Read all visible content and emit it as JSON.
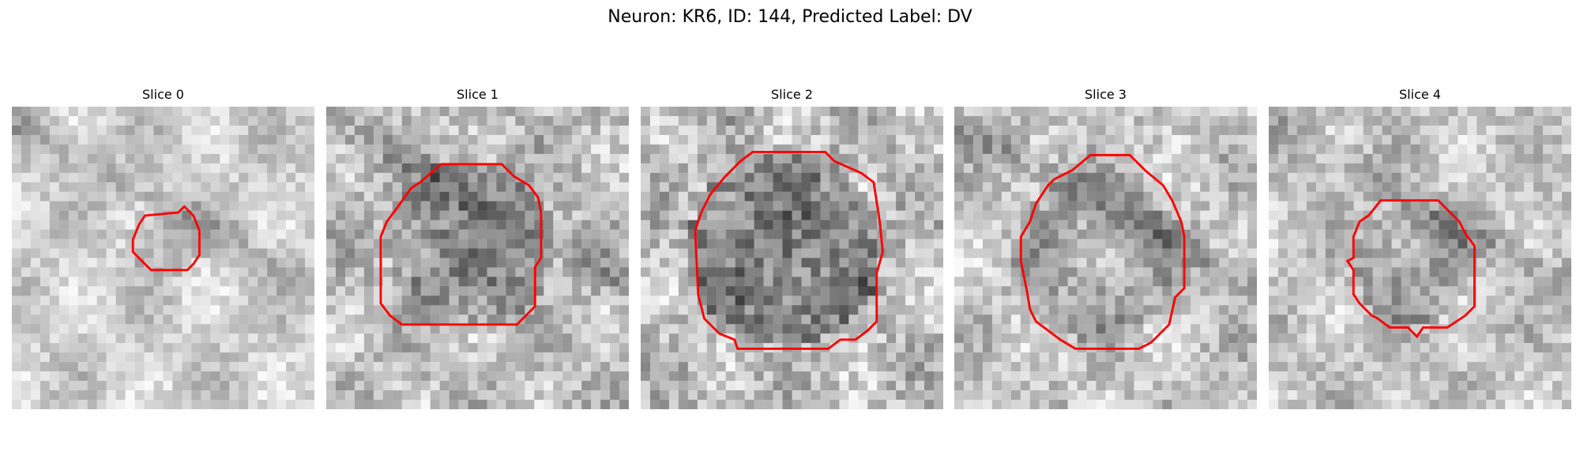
{
  "figure": {
    "title": "Neuron: KR6, ID: 144, Predicted Label: DV"
  },
  "panels": [
    {
      "title": "Slice 0",
      "seed": 11,
      "background_levels": [
        150,
        235
      ],
      "dark_band": {
        "direction": "diag-down",
        "strength": 0.45
      },
      "contour": [
        [
          44,
          36
        ],
        [
          55,
          35
        ],
        [
          57,
          33
        ],
        [
          60,
          36
        ],
        [
          62,
          41
        ],
        [
          62,
          49
        ],
        [
          60,
          52
        ],
        [
          58,
          54
        ],
        [
          46,
          54
        ],
        [
          43,
          51
        ],
        [
          40,
          48
        ],
        [
          40,
          44
        ],
        [
          42,
          39
        ]
      ],
      "cell_dark": {
        "cx": 50,
        "cy": 45,
        "r": 12,
        "strength": 0.35
      }
    },
    {
      "title": "Slice 1",
      "seed": 23,
      "background_levels": [
        110,
        230
      ],
      "dark_band": {
        "direction": "diag-down-right",
        "strength": 0.3
      },
      "contour": [
        [
          38,
          19
        ],
        [
          58,
          19
        ],
        [
          62,
          23
        ],
        [
          67,
          26
        ],
        [
          70,
          30
        ],
        [
          71,
          35
        ],
        [
          71,
          50
        ],
        [
          69,
          53
        ],
        [
          69,
          66
        ],
        [
          63,
          72
        ],
        [
          25,
          72
        ],
        [
          21,
          69
        ],
        [
          18,
          65
        ],
        [
          18,
          43
        ],
        [
          20,
          38
        ],
        [
          23,
          34
        ],
        [
          28,
          27
        ],
        [
          31,
          25
        ]
      ],
      "cell_dark": {
        "cx": 48,
        "cy": 45,
        "r": 28,
        "strength": 0.5
      }
    },
    {
      "title": "Slice 2",
      "seed": 37,
      "background_levels": [
        100,
        235
      ],
      "dark_band": null,
      "contour": [
        [
          37,
          15
        ],
        [
          61,
          15
        ],
        [
          64,
          18
        ],
        [
          73,
          22
        ],
        [
          77,
          25
        ],
        [
          79,
          38
        ],
        [
          80,
          48
        ],
        [
          78,
          55
        ],
        [
          78,
          71
        ],
        [
          75,
          74
        ],
        [
          71,
          77
        ],
        [
          66,
          77
        ],
        [
          62,
          80
        ],
        [
          32,
          80
        ],
        [
          31,
          77
        ],
        [
          26,
          75
        ],
        [
          24,
          73
        ],
        [
          21,
          70
        ],
        [
          19,
          62
        ],
        [
          18,
          41
        ],
        [
          20,
          35
        ],
        [
          23,
          29
        ],
        [
          28,
          23
        ],
        [
          33,
          18
        ]
      ],
      "cell_dark": {
        "cx": 48,
        "cy": 47,
        "r": 32,
        "strength": 0.55
      }
    },
    {
      "title": "Slice 3",
      "seed": 51,
      "background_levels": [
        120,
        235
      ],
      "dark_band": {
        "direction": "diag-down-right",
        "strength": 0.4
      },
      "contour": [
        [
          45,
          16
        ],
        [
          58,
          16
        ],
        [
          63,
          21
        ],
        [
          69,
          26
        ],
        [
          72,
          31
        ],
        [
          75,
          38
        ],
        [
          76,
          43
        ],
        [
          76,
          60
        ],
        [
          73,
          63
        ],
        [
          71,
          72
        ],
        [
          65,
          78
        ],
        [
          61,
          80
        ],
        [
          40,
          80
        ],
        [
          35,
          77
        ],
        [
          27,
          71
        ],
        [
          25,
          67
        ],
        [
          24,
          61
        ],
        [
          22,
          51
        ],
        [
          22,
          43
        ],
        [
          25,
          38
        ],
        [
          27,
          32
        ],
        [
          31,
          26
        ],
        [
          33,
          24
        ],
        [
          39,
          21
        ]
      ],
      "cell_dark": {
        "cx": 48,
        "cy": 50,
        "r": 28,
        "strength": 0.3
      }
    },
    {
      "title": "Slice 4",
      "seed": 67,
      "background_levels": [
        130,
        230
      ],
      "dark_band": {
        "direction": "diag-down-right",
        "strength": 0.35
      },
      "contour": [
        [
          37,
          31
        ],
        [
          56,
          31
        ],
        [
          63,
          38
        ],
        [
          65,
          42
        ],
        [
          68,
          46
        ],
        [
          68,
          66
        ],
        [
          65,
          69
        ],
        [
          59,
          73
        ],
        [
          51,
          73
        ],
        [
          49,
          76
        ],
        [
          46,
          73
        ],
        [
          40,
          73
        ],
        [
          36,
          70
        ],
        [
          34,
          69
        ],
        [
          30,
          65
        ],
        [
          28,
          62
        ],
        [
          28,
          54
        ],
        [
          26,
          51
        ],
        [
          28,
          50
        ],
        [
          28,
          43
        ],
        [
          30,
          38
        ],
        [
          33,
          36
        ]
      ],
      "cell_dark": {
        "cx": 48,
        "cy": 52,
        "r": 20,
        "strength": 0.4
      }
    }
  ],
  "contour_color": "#ff0000"
}
